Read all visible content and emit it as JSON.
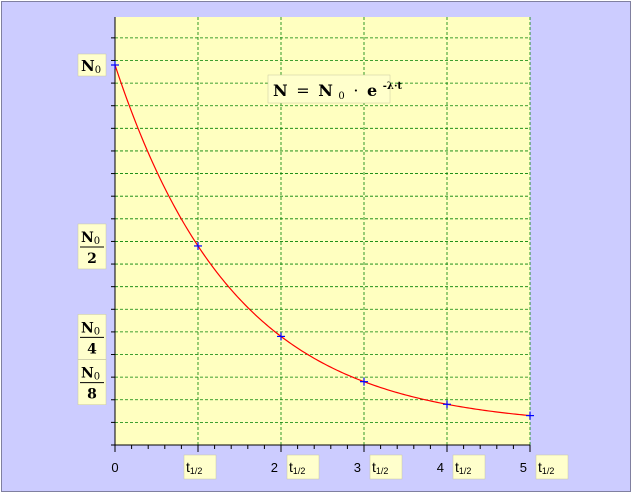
{
  "colors": {
    "background": "#ccccff",
    "plot_background": "#ffffc0",
    "grid": "#008000",
    "curve": "#ff0000",
    "markers": "#0000ff",
    "label_box": "#ffffcc"
  },
  "chart_data": {
    "type": "line",
    "title": "",
    "formula": {
      "lhs": "N",
      "eq": "=",
      "n": "N",
      "sub": "0",
      "dot": "·",
      "e": "e",
      "exp": "-λ·t"
    },
    "x_unit_label": {
      "main": "t",
      "sub": "1/2"
    },
    "x_ticks": [
      0,
      1,
      2,
      3,
      4,
      5
    ],
    "x_tick_numbers": [
      "0",
      "",
      "2",
      "3",
      "4",
      "5"
    ],
    "y_labels": [
      {
        "value": 1.0,
        "num": "N",
        "sub": "0",
        "den": ""
      },
      {
        "value": 0.5,
        "num": "N",
        "sub": "0",
        "den": "2"
      },
      {
        "value": 0.25,
        "num": "N",
        "sub": "0",
        "den": "4"
      },
      {
        "value": 0.125,
        "num": "N",
        "sub": "0",
        "den": "8"
      }
    ],
    "xlim": [
      0,
      5
    ],
    "ylim": [
      -0.05,
      1.0
    ],
    "y_top_extent": 1.15,
    "grid": true,
    "series": [
      {
        "x": [
          0,
          1,
          2,
          3,
          4,
          5
        ],
        "y": [
          1.0,
          0.5,
          0.25,
          0.125,
          0.0625,
          0.03125
        ]
      }
    ]
  }
}
